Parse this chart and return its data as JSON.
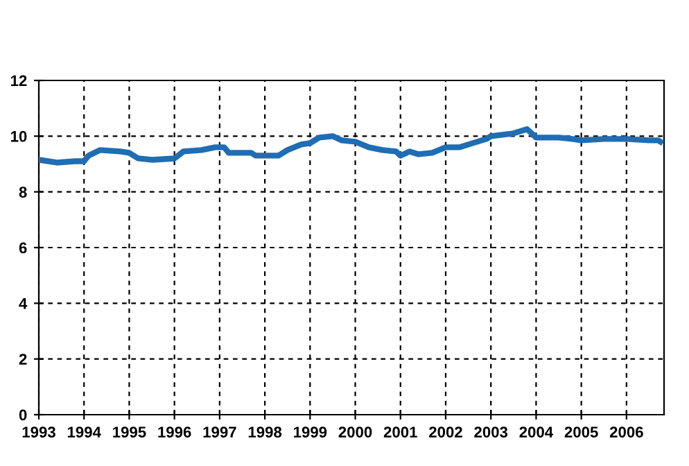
{
  "chart_data": {
    "type": "line",
    "x": [
      1993.0,
      1993.4,
      1993.8,
      1994.0,
      1994.1,
      1994.35,
      1994.8,
      1995.0,
      1995.2,
      1995.5,
      1996.0,
      1996.2,
      1996.6,
      1996.9,
      1997.1,
      1997.2,
      1997.7,
      1997.8,
      1998.3,
      1998.5,
      1998.8,
      1999.0,
      1999.2,
      1999.5,
      1999.7,
      2000.0,
      2000.3,
      2000.6,
      2000.9,
      2001.0,
      2001.2,
      2001.4,
      2001.7,
      2002.0,
      2002.3,
      2002.6,
      2002.9,
      2003.0,
      2003.5,
      2003.8,
      2004.0,
      2004.5,
      2004.8,
      2005.0,
      2005.5,
      2006.0,
      2006.5,
      2006.7,
      2006.75
    ],
    "series": [
      {
        "color": "#1f6db5",
        "values": [
          9.15,
          9.05,
          9.1,
          9.1,
          9.3,
          9.5,
          9.45,
          9.4,
          9.2,
          9.15,
          9.2,
          9.45,
          9.5,
          9.6,
          9.6,
          9.4,
          9.4,
          9.3,
          9.3,
          9.5,
          9.7,
          9.75,
          9.95,
          10.0,
          9.85,
          9.8,
          9.6,
          9.5,
          9.45,
          9.3,
          9.45,
          9.35,
          9.4,
          9.6,
          9.6,
          9.75,
          9.9,
          10.0,
          10.1,
          10.25,
          9.95,
          9.95,
          9.9,
          9.85,
          9.9,
          9.9,
          9.85,
          9.85,
          9.8
        ]
      }
    ],
    "xlim": [
      1993,
      2006.83
    ],
    "xticks": [
      1993,
      1994,
      1995,
      1996,
      1997,
      1998,
      1999,
      2000,
      2001,
      2002,
      2003,
      2004,
      2005,
      2006
    ],
    "ylim": [
      0,
      12
    ],
    "yticks": [
      0,
      2,
      4,
      6,
      8,
      10,
      12
    ],
    "grid": true,
    "line_style": "solid",
    "marker": "none"
  }
}
